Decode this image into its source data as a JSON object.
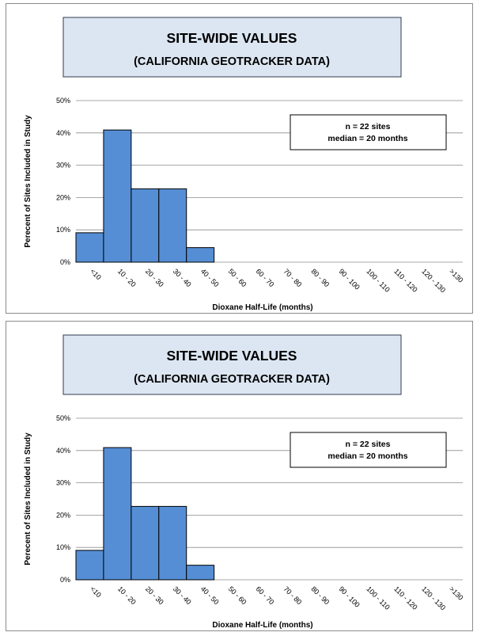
{
  "chart_data": [
    {
      "type": "bar",
      "title": "SITE-WIDE VALUES",
      "subtitle": "(CALIFORNIA GEOTRACKER DATA)",
      "xlabel": "Dioxane Half-Life (months)",
      "ylabel": "Perecent of Sites Included in Study",
      "categories": [
        "<10",
        "10 - 20",
        "20 - 30",
        "30 - 40",
        "40 - 50",
        "50 - 60",
        "60 - 70",
        "70 - 80",
        "80 - 90",
        "90 - 100",
        "100 - 110",
        "110 - 120",
        "120 - 130",
        ">130"
      ],
      "values": [
        9.1,
        40.9,
        22.7,
        22.7,
        4.5,
        0,
        0,
        0,
        0,
        0,
        0,
        0,
        0,
        0
      ],
      "ylim": [
        0,
        50
      ],
      "yticks": [
        "0%",
        "10%",
        "20%",
        "30%",
        "40%",
        "50%"
      ],
      "grid": true,
      "annotation": [
        "n  = 22 sites",
        "median = 20 months"
      ],
      "colors": {
        "bar": "#558ed5",
        "bar_edge": "#000000",
        "title_bg": "#dce6f2",
        "grid": "#8c8c8c"
      }
    },
    {
      "type": "bar",
      "title": "SITE-WIDE VALUES",
      "subtitle": "(CALIFORNIA GEOTRACKER DATA)",
      "xlabel": "Dioxane Half-Life (months)",
      "ylabel": "Perecent of Sites Included in Study",
      "categories": [
        "<10",
        "10 - 20",
        "20 - 30",
        "30 - 40",
        "40 - 50",
        "50 - 60",
        "60 - 70",
        "70 - 80",
        "80 - 90",
        "90 - 100",
        "100 - 110",
        "110 - 120",
        "120 - 130",
        ">130"
      ],
      "values": [
        9.1,
        40.9,
        22.7,
        22.7,
        4.5,
        0,
        0,
        0,
        0,
        0,
        0,
        0,
        0,
        0
      ],
      "ylim": [
        0,
        50
      ],
      "yticks": [
        "0%",
        "10%",
        "20%",
        "30%",
        "40%",
        "50%"
      ],
      "grid": true,
      "annotation": [
        "n  = 22 sites",
        "median = 20 months"
      ],
      "colors": {
        "bar": "#558ed5",
        "bar_edge": "#000000",
        "title_bg": "#dce6f2",
        "grid": "#8c8c8c"
      }
    }
  ]
}
